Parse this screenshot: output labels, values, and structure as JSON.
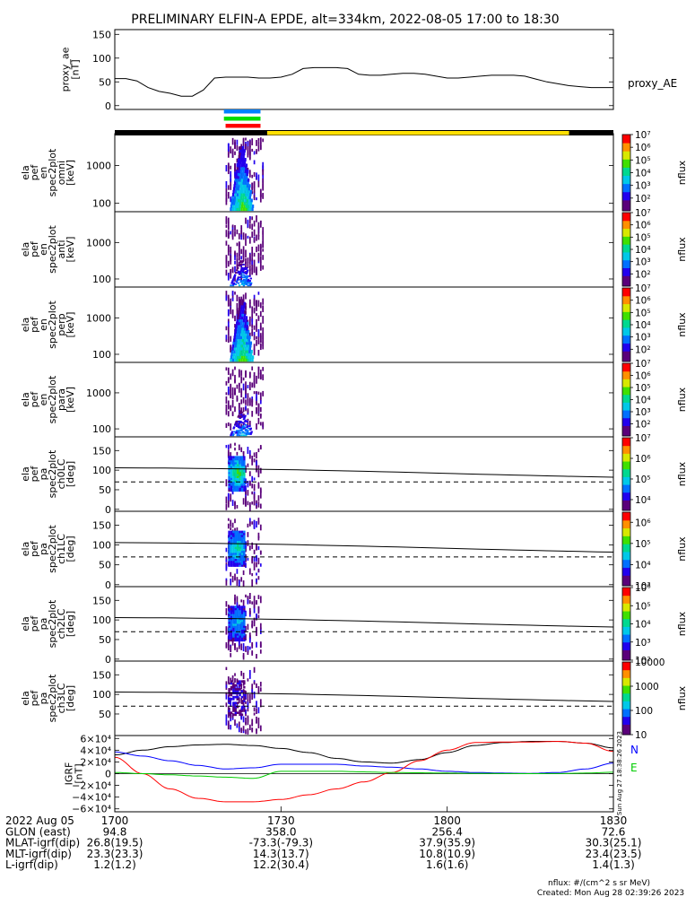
{
  "title": "PRELIMINARY ELFIN-A EPDE, alt=334km, 2022-08-05 17:00 to 18:30",
  "chart_data": [
    {
      "type": "line",
      "name": "proxy_ae",
      "ylabel": [
        "proxy_ae",
        "[nT]"
      ],
      "legend": "proxy_AE",
      "ylim": [
        -8,
        160
      ],
      "yticks": [
        "0",
        "50",
        "100",
        "150"
      ],
      "ytick_values": [
        0,
        50,
        100,
        150
      ],
      "x_minutes": [
        0,
        2,
        4,
        6,
        8,
        10,
        12,
        14,
        16,
        18,
        20,
        22,
        24,
        26,
        28,
        30,
        32,
        34,
        36,
        38,
        40,
        42,
        44,
        46,
        48,
        50,
        52,
        54,
        56,
        58,
        60,
        62,
        64,
        66,
        68,
        70,
        72,
        74,
        76,
        78,
        80,
        82,
        84,
        86,
        88,
        90
      ],
      "values": [
        57,
        57,
        52,
        38,
        30,
        26,
        20,
        20,
        33,
        58,
        60,
        60,
        60,
        58,
        58,
        60,
        66,
        78,
        80,
        80,
        80,
        78,
        66,
        64,
        64,
        66,
        68,
        68,
        66,
        62,
        58,
        58,
        60,
        62,
        64,
        64,
        64,
        62,
        56,
        50,
        46,
        42,
        40,
        38,
        38,
        38
      ]
    },
    {
      "type": "heatmap",
      "name": "ela_pef_en_spec2plot_omni",
      "ylabel": [
        "ela",
        "pef",
        "en",
        "spec2plot",
        "omni",
        "[keV]"
      ],
      "yscale": "log",
      "ylim": [
        60,
        7000
      ],
      "yticks": [
        "100",
        "1000"
      ],
      "ytick_values": [
        100,
        1000
      ],
      "colorbar": {
        "label": "nflux",
        "scale": "log",
        "range": [
          10,
          10000000
        ],
        "ticks": [
          "10⁷",
          "10⁶",
          "10⁵",
          "10⁴",
          "10³",
          "10²"
        ],
        "tick_values": [
          10000000,
          1000000,
          100000,
          10000,
          1000,
          100
        ]
      },
      "event_minutes": [
        20,
        27
      ],
      "max_level": 5,
      "profile": "peaked",
      "cores": 4,
      "trail": 1.7
    },
    {
      "type": "heatmap",
      "name": "ela_pef_en_spec2plot_anti",
      "ylabel": [
        "ela",
        "pef",
        "en",
        "spec2plot",
        "anti",
        "[keV]"
      ],
      "yscale": "log",
      "ylim": [
        60,
        7000
      ],
      "yticks": [
        "100",
        "1000"
      ],
      "ytick_values": [
        100,
        1000
      ],
      "colorbar": {
        "label": "nflux",
        "scale": "log",
        "range": [
          10,
          10000000
        ],
        "ticks": [
          "10⁷",
          "10⁶",
          "10⁵",
          "10⁴",
          "10³",
          "10²"
        ],
        "tick_values": [
          10000000,
          1000000,
          100000,
          10000,
          1000,
          100
        ]
      },
      "event_minutes": [
        20,
        27
      ],
      "max_level": 3,
      "profile": "weak",
      "cores": 1,
      "trail": 0.7
    },
    {
      "type": "heatmap",
      "name": "ela_pef_en_spec2plot_perp",
      "ylabel": [
        "ela",
        "pef",
        "en",
        "spec2plot",
        "perp",
        "[keV]"
      ],
      "yscale": "log",
      "ylim": [
        60,
        7000
      ],
      "yticks": [
        "100",
        "1000"
      ],
      "ytick_values": [
        100,
        1000
      ],
      "colorbar": {
        "label": "nflux",
        "scale": "log",
        "range": [
          10,
          10000000
        ],
        "ticks": [
          "10⁷",
          "10⁶",
          "10⁵",
          "10⁴",
          "10³",
          "10²"
        ],
        "tick_values": [
          10000000,
          1000000,
          100000,
          10000,
          1000,
          100
        ]
      },
      "event_minutes": [
        20,
        27
      ],
      "max_level": 5,
      "profile": "peaked",
      "cores": 4,
      "trail": 1.7
    },
    {
      "type": "heatmap",
      "name": "ela_pef_en_spec2plot_para",
      "ylabel": [
        "ela",
        "pef",
        "en",
        "spec2plot",
        "para",
        "[keV]"
      ],
      "yscale": "log",
      "ylim": [
        60,
        7000
      ],
      "yticks": [
        "100",
        "1000"
      ],
      "ytick_values": [
        100,
        1000
      ],
      "colorbar": {
        "label": "nflux",
        "scale": "log",
        "range": [
          10,
          10000000
        ],
        "ticks": [
          "10⁷",
          "10⁶",
          "10⁵",
          "10⁴",
          "10³",
          "10²"
        ],
        "tick_values": [
          10000000,
          1000000,
          100000,
          10000,
          1000,
          100
        ]
      },
      "event_minutes": [
        20,
        27
      ],
      "max_level": 3,
      "profile": "weak",
      "cores": 1,
      "trail": 0.7
    },
    {
      "type": "heatmap",
      "name": "ela_pef_pa_spec2plot_ch0LC",
      "ylabel": [
        "ela",
        "pef",
        "pa",
        "spec2plot",
        "ch0LC",
        "[deg]"
      ],
      "ylim": [
        -5,
        185
      ],
      "yticks": [
        "0",
        "50",
        "100",
        "150"
      ],
      "ytick_values": [
        0,
        50,
        100,
        150
      ],
      "colorbar": {
        "label": "nflux",
        "scale": "log",
        "range": [
          3000,
          10000000
        ],
        "ticks": [
          "10⁷",
          "10⁶",
          "10⁵",
          "10⁴"
        ],
        "tick_values": [
          10000000,
          1000000,
          100000,
          10000
        ]
      },
      "event_minutes": [
        20,
        26.5
      ],
      "max_level": 5,
      "profile": "pa",
      "loss_cone_deg": 70,
      "anti_loss_cone_deg": [
        106,
        82
      ]
    },
    {
      "type": "heatmap",
      "name": "ela_pef_pa_spec2plot_ch1LC",
      "ylabel": [
        "ela",
        "pef",
        "pa",
        "spec2plot",
        "ch1LC",
        "[deg]"
      ],
      "ylim": [
        -5,
        185
      ],
      "yticks": [
        "0",
        "50",
        "100",
        "150"
      ],
      "ytick_values": [
        0,
        50,
        100,
        150
      ],
      "colorbar": {
        "label": "nflux",
        "scale": "log",
        "range": [
          1000,
          3000000
        ],
        "ticks": [
          "10⁶",
          "10⁵",
          "10⁴",
          "10³"
        ],
        "tick_values": [
          1000000,
          100000,
          10000,
          1000
        ]
      },
      "event_minutes": [
        20,
        26.5
      ],
      "max_level": 4,
      "profile": "pa",
      "loss_cone_deg": 70,
      "anti_loss_cone_deg": [
        106,
        82
      ]
    },
    {
      "type": "heatmap",
      "name": "ela_pef_pa_spec2plot_ch2LC",
      "ylabel": [
        "ela",
        "pef",
        "pa",
        "spec2plot",
        "ch2LC",
        "[deg]"
      ],
      "ylim": [
        -5,
        185
      ],
      "yticks": [
        "0",
        "50",
        "100",
        "150"
      ],
      "ytick_values": [
        0,
        50,
        100,
        150
      ],
      "colorbar": {
        "label": "nflux",
        "scale": "log",
        "range": [
          100,
          1000000
        ],
        "ticks": [
          "10⁶",
          "10⁵",
          "10⁴",
          "10³",
          "10²"
        ],
        "tick_values": [
          1000000,
          100000,
          10000,
          1000,
          100
        ]
      },
      "event_minutes": [
        20,
        26.5
      ],
      "max_level": 3,
      "profile": "pa",
      "loss_cone_deg": 70,
      "anti_loss_cone_deg": [
        106,
        82
      ]
    },
    {
      "type": "heatmap",
      "name": "ela_pef_pa_spec2plot_ch3LC",
      "ylabel": [
        "ela",
        "pef",
        "pa",
        "spec2plot",
        "ch3LC",
        "[deg]"
      ],
      "ylim": [
        -5,
        185
      ],
      "yticks": [
        "50",
        "100",
        "150"
      ],
      "ytick_values": [
        50,
        100,
        150
      ],
      "colorbar": {
        "label": "nflux",
        "scale": "log",
        "range": [
          10,
          10000
        ],
        "ticks": [
          "10000",
          "1000",
          "100",
          "10"
        ],
        "tick_values": [
          10000,
          1000,
          100,
          10
        ]
      },
      "event_minutes": [
        20,
        26.5
      ],
      "max_level": 1,
      "profile": "pa",
      "loss_cone_deg": 70,
      "anti_loss_cone_deg": [
        106,
        82
      ]
    },
    {
      "type": "line",
      "name": "IGRF",
      "ylabel": [
        "IGRF",
        "[nT]"
      ],
      "ylim": [
        -65000,
        65000
      ],
      "yticks": [
        "6×10⁴",
        "4×10⁴",
        "2×10⁴",
        "0",
        "−2×10⁴",
        "−4×10⁴",
        "−6×10⁴"
      ],
      "ytick_values": [
        60000,
        40000,
        20000,
        0,
        -20000,
        -40000,
        -60000
      ],
      "legend": [
        "N",
        "E"
      ],
      "side_label": "Sun Aug 27 18:38:26 2023",
      "x_minutes": [
        0,
        5,
        10,
        15,
        20,
        25,
        30,
        35,
        40,
        45,
        50,
        55,
        60,
        65,
        70,
        75,
        80,
        85,
        90
      ],
      "series": [
        {
          "color": "#000000",
          "values": [
            32000,
            40000,
            46000,
            49000,
            50000,
            48000,
            43000,
            36000,
            26000,
            20000,
            18000,
            24000,
            36000,
            48000,
            53000,
            55000,
            55000,
            52000,
            44000
          ]
        },
        {
          "color": "#0000ff",
          "values": [
            37000,
            30000,
            22000,
            14000,
            8000,
            10000,
            16000,
            16000,
            16000,
            13000,
            11000,
            8000,
            4000,
            2000,
            1000,
            500,
            2000,
            8000,
            18000
          ]
        },
        {
          "color": "#ff0000",
          "values": [
            28000,
            0,
            -26000,
            -42000,
            -48000,
            -48000,
            -44000,
            -36000,
            -26000,
            -14000,
            2000,
            22000,
            40000,
            53000,
            54000,
            54000,
            55000,
            52000,
            38000
          ]
        },
        {
          "color": "#00cc00",
          "values": [
            2000,
            0,
            -2000,
            -4000,
            -6000,
            -8000,
            4000,
            4000,
            4000,
            3000,
            2000,
            1500,
            1000,
            500,
            200,
            0,
            200,
            1000,
            2500
          ]
        }
      ]
    }
  ],
  "time_bar": {
    "track_minutes": [
      0,
      90
    ],
    "sunlit_minutes": [
      27.5,
      82
    ],
    "event_bars": [
      {
        "color": "#0080ff",
        "minutes": [
          19.7,
          26.3
        ]
      },
      {
        "color": "#00dd00",
        "minutes": [
          19.7,
          26.3
        ]
      },
      {
        "color": "#ff0000",
        "minutes": [
          20.0,
          26.3
        ]
      }
    ]
  },
  "xaxis": {
    "minute_ticks": [
      0,
      30,
      60,
      90
    ],
    "rows": [
      {
        "label": "2022 Aug 05",
        "values": [
          "1700",
          "1730",
          "1800",
          "1830"
        ]
      },
      {
        "label": "GLON (east)",
        "values": [
          "94.8",
          "358.0",
          "256.4",
          "72.6"
        ]
      },
      {
        "label": "MLAT-igrf(dip)",
        "values": [
          "26.8(19.5)",
          "-73.3(-79.3)",
          "37.9(35.9)",
          "30.3(25.1)"
        ]
      },
      {
        "label": "MLT-igrf(dip)",
        "values": [
          "23.3(23.3)",
          "14.3(13.7)",
          "10.8(10.9)",
          "23.4(23.5)"
        ]
      },
      {
        "label": "L-igrf(dip)",
        "values": [
          "1.2(1.2)",
          "12.2(30.4)",
          "1.6(1.6)",
          "1.4(1.3)"
        ]
      }
    ]
  },
  "footer": {
    "units": "nflux: #/(cm^2 s sr MeV)",
    "created": "Created: Mon Aug 28 02:39:26 2023"
  }
}
